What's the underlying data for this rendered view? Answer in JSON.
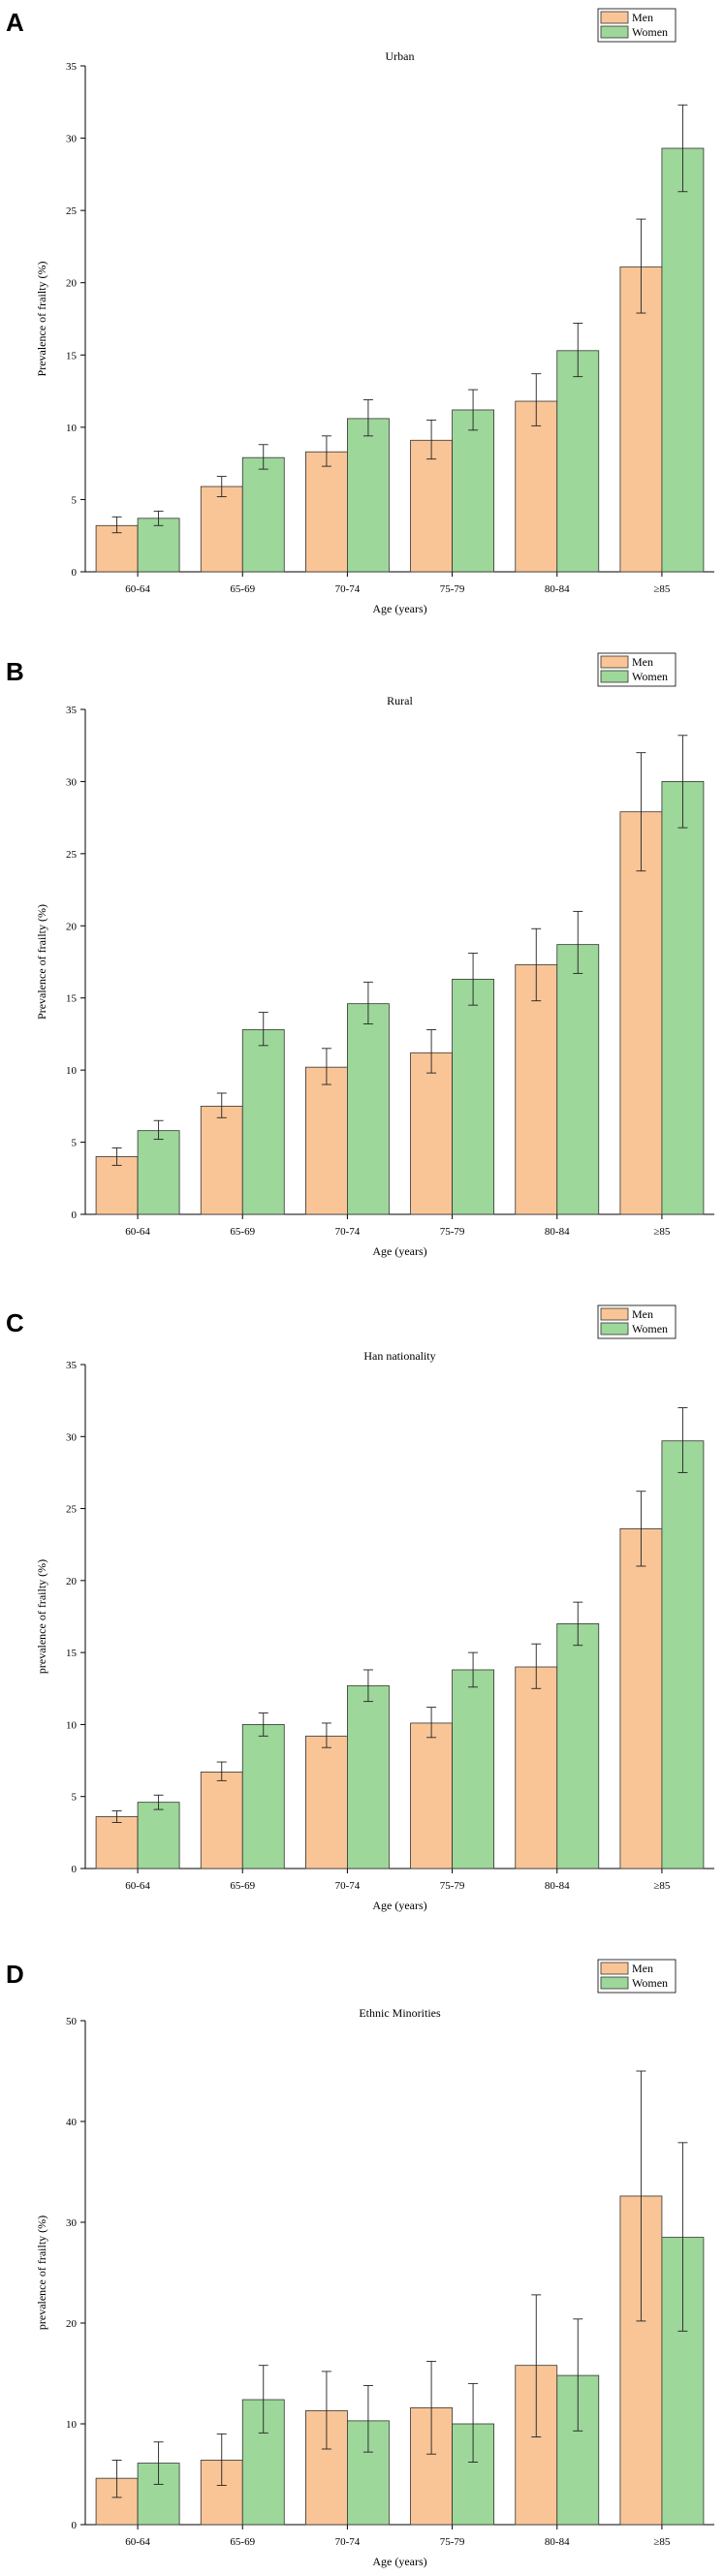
{
  "colors": {
    "men": "#f9c597",
    "women": "#9dd79a"
  },
  "chart_data": [
    {
      "panel": "A",
      "type": "bar",
      "title": "Urban",
      "xlabel": "Age (years)",
      "ylabel": "Prevalence of frailty (%)",
      "ylim": [
        0,
        35
      ],
      "yticks": [
        0,
        5,
        10,
        15,
        20,
        25,
        30,
        35
      ],
      "categories": [
        "60-64",
        "65-69",
        "70-74",
        "75-79",
        "80-84",
        "≥85"
      ],
      "series": [
        {
          "name": "Men",
          "values": [
            3.2,
            5.9,
            8.3,
            9.1,
            11.8,
            21.1
          ],
          "err_low": [
            2.7,
            5.2,
            7.3,
            7.8,
            10.1,
            17.9
          ],
          "err_high": [
            3.8,
            6.6,
            9.4,
            10.5,
            13.7,
            24.4
          ]
        },
        {
          "name": "Women",
          "values": [
            3.7,
            7.9,
            10.6,
            11.2,
            15.3,
            29.3
          ],
          "err_low": [
            3.2,
            7.1,
            9.4,
            9.8,
            13.5,
            26.3
          ],
          "err_high": [
            4.2,
            8.8,
            11.9,
            12.6,
            17.2,
            32.3
          ]
        }
      ]
    },
    {
      "panel": "B",
      "type": "bar",
      "title": "Rural",
      "xlabel": "Age (years)",
      "ylabel": "Prevalence of frailty (%)",
      "ylim": [
        0,
        35
      ],
      "yticks": [
        0,
        5,
        10,
        15,
        20,
        25,
        30,
        35
      ],
      "categories": [
        "60-64",
        "65-69",
        "70-74",
        "75-79",
        "80-84",
        "≥85"
      ],
      "series": [
        {
          "name": "Men",
          "values": [
            4.0,
            7.5,
            10.2,
            11.2,
            17.3,
            27.9
          ],
          "err_low": [
            3.4,
            6.7,
            9.0,
            9.8,
            14.8,
            23.8
          ],
          "err_high": [
            4.6,
            8.4,
            11.5,
            12.8,
            19.8,
            32.0
          ]
        },
        {
          "name": "Women",
          "values": [
            5.8,
            12.8,
            14.6,
            16.3,
            18.7,
            30.0
          ],
          "err_low": [
            5.2,
            11.7,
            13.2,
            14.5,
            16.7,
            26.8
          ],
          "err_high": [
            6.5,
            14.0,
            16.1,
            18.1,
            21.0,
            33.2
          ]
        }
      ]
    },
    {
      "panel": "C",
      "type": "bar",
      "title": "Han nationality",
      "xlabel": "Age (years)",
      "ylabel": "prevalence of frailty (%)",
      "ylim": [
        0,
        35
      ],
      "yticks": [
        0,
        5,
        10,
        15,
        20,
        25,
        30,
        35
      ],
      "categories": [
        "60-64",
        "65-69",
        "70-74",
        "75-79",
        "80-84",
        "≥85"
      ],
      "series": [
        {
          "name": "Men",
          "values": [
            3.6,
            6.7,
            9.2,
            10.1,
            14.0,
            23.6
          ],
          "err_low": [
            3.2,
            6.1,
            8.4,
            9.1,
            12.5,
            21.0
          ],
          "err_high": [
            4.0,
            7.4,
            10.1,
            11.2,
            15.6,
            26.2
          ]
        },
        {
          "name": "Women",
          "values": [
            4.6,
            10.0,
            12.7,
            13.8,
            17.0,
            29.7
          ],
          "err_low": [
            4.1,
            9.2,
            11.6,
            12.6,
            15.5,
            27.5
          ],
          "err_high": [
            5.1,
            10.8,
            13.8,
            15.0,
            18.5,
            32.0
          ]
        }
      ]
    },
    {
      "panel": "D",
      "type": "bar",
      "title": "Ethnic Minorities",
      "xlabel": "Age (years)",
      "ylabel": "prevalence of frailty (%)",
      "ylim": [
        0,
        50
      ],
      "yticks": [
        0,
        10,
        20,
        30,
        40,
        50
      ],
      "categories": [
        "60-64",
        "65-69",
        "70-74",
        "75-79",
        "80-84",
        "≥85"
      ],
      "series": [
        {
          "name": "Men",
          "values": [
            4.6,
            6.4,
            11.3,
            11.6,
            15.8,
            32.6
          ],
          "err_low": [
            2.7,
            3.9,
            7.5,
            7.0,
            8.7,
            20.2
          ],
          "err_high": [
            6.4,
            9.0,
            15.2,
            16.2,
            22.8,
            45.0
          ]
        },
        {
          "name": "Women",
          "values": [
            6.1,
            12.4,
            10.3,
            10.0,
            14.8,
            28.5
          ],
          "err_low": [
            4.0,
            9.1,
            7.2,
            6.2,
            9.3,
            19.2
          ],
          "err_high": [
            8.2,
            15.8,
            13.8,
            14.0,
            20.4,
            37.9
          ]
        }
      ]
    }
  ]
}
